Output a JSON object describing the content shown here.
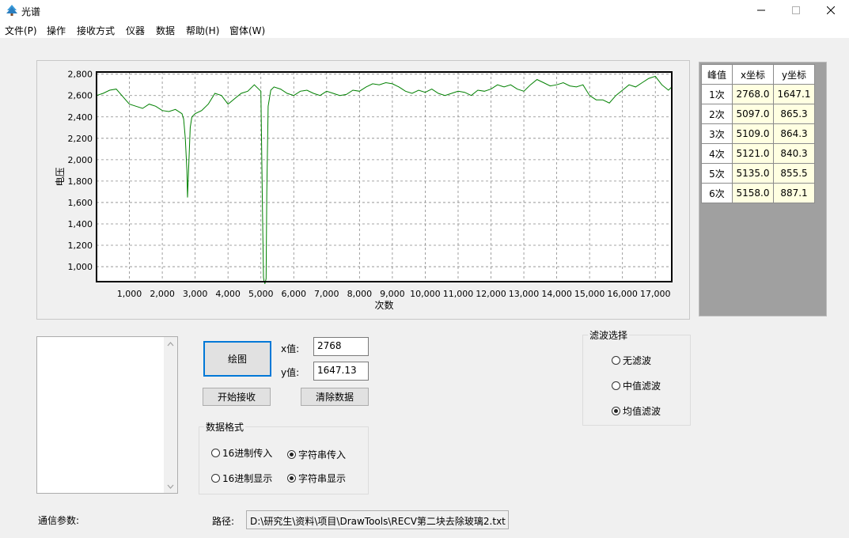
{
  "window": {
    "title": "光谱",
    "buttons": {
      "minimize": "—",
      "maximize": "☐",
      "close": "✕"
    }
  },
  "menu": {
    "items": [
      "文件(P)",
      "操作",
      "接收方式",
      "仪器",
      "数据",
      "帮助(H)",
      "窗体(W)"
    ]
  },
  "chart_data": {
    "type": "line",
    "title": "",
    "xlabel": "次数",
    "ylabel": "电压",
    "xlim": [
      0,
      17500
    ],
    "ylim": [
      860,
      2820
    ],
    "x_ticks": [
      1000,
      2000,
      3000,
      4000,
      5000,
      6000,
      7000,
      8000,
      9000,
      10000,
      11000,
      12000,
      13000,
      14000,
      15000,
      16000,
      17000
    ],
    "x_tick_labels": [
      "1,000",
      "2,000",
      "3,000",
      "4,000",
      "5,000",
      "6,000",
      "7,000",
      "8,000",
      "9,000",
      "10,000",
      "11,000",
      "12,000",
      "13,000",
      "14,000",
      "15,000",
      "16,000",
      "17,000"
    ],
    "y_ticks": [
      1000,
      1200,
      1400,
      1600,
      1800,
      2000,
      2200,
      2400,
      2600,
      2800
    ],
    "y_tick_labels": [
      "1,000",
      "1,200",
      "1,400",
      "1,600",
      "1,800",
      "2,000",
      "2,200",
      "2,400",
      "2,600",
      "2,800"
    ],
    "grid": true,
    "line_color": "#008000",
    "series": [
      {
        "x": [
          0,
          200,
          400,
          600,
          800,
          1000,
          1200,
          1400,
          1600,
          1800,
          2000,
          2200,
          2400,
          2600,
          2650,
          2700,
          2750,
          2768,
          2800,
          2850,
          2900,
          3000,
          3200,
          3400,
          3600,
          3800,
          4000,
          4200,
          4400,
          4600,
          4800,
          5000,
          5050,
          5080,
          5097,
          5109,
          5121,
          5135,
          5158,
          5180,
          5220,
          5300,
          5400,
          5600,
          5800,
          6000,
          6200,
          6400,
          6600,
          6800,
          7000,
          7200,
          7400,
          7600,
          7800,
          8000,
          8200,
          8400,
          8600,
          8800,
          9000,
          9200,
          9400,
          9600,
          9800,
          10000,
          10200,
          10400,
          10600,
          10800,
          11000,
          11200,
          11400,
          11600,
          11800,
          12000,
          12200,
          12400,
          12600,
          12800,
          13000,
          13200,
          13400,
          13600,
          13800,
          14000,
          14200,
          14400,
          14600,
          14800,
          15000,
          15200,
          15400,
          15600,
          15800,
          16000,
          16200,
          16400,
          16600,
          16800,
          17000,
          17200,
          17400,
          17500
        ],
        "y": [
          2600,
          2620,
          2650,
          2660,
          2590,
          2520,
          2500,
          2480,
          2520,
          2500,
          2460,
          2450,
          2470,
          2430,
          2380,
          2200,
          1900,
          1647,
          1900,
          2300,
          2400,
          2430,
          2460,
          2520,
          2620,
          2600,
          2520,
          2570,
          2620,
          2640,
          2700,
          2640,
          1500,
          900,
          865,
          864,
          840,
          856,
          887,
          1700,
          2500,
          2650,
          2680,
          2660,
          2620,
          2600,
          2640,
          2650,
          2620,
          2600,
          2640,
          2620,
          2600,
          2610,
          2650,
          2640,
          2680,
          2710,
          2700,
          2720,
          2710,
          2680,
          2640,
          2620,
          2650,
          2630,
          2660,
          2620,
          2600,
          2620,
          2640,
          2630,
          2600,
          2650,
          2640,
          2660,
          2700,
          2680,
          2700,
          2660,
          2640,
          2700,
          2750,
          2720,
          2690,
          2700,
          2720,
          2690,
          2680,
          2700,
          2600,
          2560,
          2560,
          2530,
          2600,
          2650,
          2700,
          2680,
          2720,
          2760,
          2780,
          2700,
          2650,
          2680
        ]
      }
    ]
  },
  "peaks": {
    "headers": [
      "峰值",
      "x坐标",
      "y坐标"
    ],
    "rows": [
      [
        "1次",
        "2768.0",
        "1647.1"
      ],
      [
        "2次",
        "5097.0",
        "865.3"
      ],
      [
        "3次",
        "5109.0",
        "864.3"
      ],
      [
        "4次",
        "5121.0",
        "840.3"
      ],
      [
        "5次",
        "5135.0",
        "855.5"
      ],
      [
        "6次",
        "5158.0",
        "887.1"
      ]
    ]
  },
  "controls": {
    "draw_button": "绘图",
    "start_button": "开始接收",
    "clear_button": "清除数据",
    "x_label": "x值:",
    "y_label": "y值:",
    "x_value": "2768",
    "y_value": "1647.13"
  },
  "data_format": {
    "title": "数据格式",
    "hex_in": "16进制传入",
    "str_in": "字符串传入",
    "hex_show": "16进制显示",
    "str_show": "字符串显示",
    "selected_in": "str_in",
    "selected_show": "str_show"
  },
  "filter": {
    "title": "滤波选择",
    "none": "无滤波",
    "median": "中值滤波",
    "mean": "均值滤波",
    "selected": "mean"
  },
  "footer": {
    "comm_label": "通信参数:",
    "path_label": "路径:",
    "path_value": "D:\\研究生\\资料\\项目\\DrawTools\\RECV第二块去除玻璃2.txt"
  }
}
